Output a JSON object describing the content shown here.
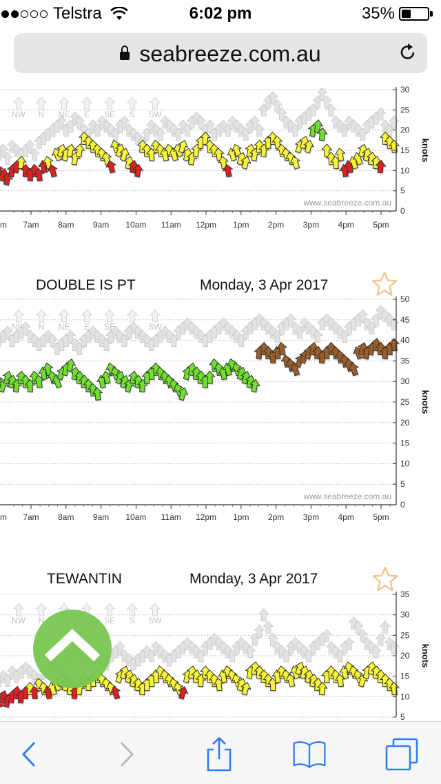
{
  "status_bar": {
    "carrier": "Telstra",
    "time": "6:02 pm",
    "battery": "35%",
    "battery_level": 0.35
  },
  "browser": {
    "url": "seabreeze.com.au"
  },
  "colors": {
    "red": "#e02020",
    "yellow": "#f7f439",
    "green": "#6fe02c",
    "brown": "#9b5e2a",
    "gust": "#e3e3e3",
    "star": "#f4c48d",
    "topbtn": "#79c752"
  },
  "compass_labels": [
    "NW",
    "N",
    "NE",
    "E",
    "SE",
    "S",
    "SW"
  ],
  "watermark": "www.seabreeze.com.au",
  "chart_data": [
    {
      "type": "scatter",
      "station": "",
      "date": "",
      "ylabel": "knots",
      "ylim": [
        0,
        30
      ],
      "yticks": [
        0,
        5,
        10,
        15,
        20,
        25,
        30
      ],
      "xticks": [
        "7am",
        "8am",
        "9am",
        "10am",
        "11am",
        "12pm",
        "1pm",
        "2pm",
        "3pm",
        "4pm",
        "5pm"
      ],
      "x_start_label": "m",
      "series": [
        {
          "name": "",
          "values": [
            10,
            9,
            8,
            10,
            11,
            12,
            10,
            9,
            10,
            9,
            11,
            12,
            10,
            14,
            15,
            14,
            15,
            13,
            15,
            18,
            17,
            16,
            15,
            14,
            13,
            11,
            16,
            15,
            14,
            12,
            11,
            10,
            16,
            15,
            14,
            16,
            15,
            14,
            15,
            14,
            15,
            16,
            14,
            13,
            15,
            17,
            18,
            16,
            15,
            14,
            12,
            10,
            14,
            15,
            13,
            12,
            15,
            14,
            16,
            15,
            17,
            18,
            17,
            15,
            14,
            13,
            12,
            16,
            17,
            16,
            20,
            21,
            19,
            15,
            13,
            12,
            14,
            10,
            11,
            12,
            13,
            15,
            14,
            13,
            12,
            11,
            18,
            17,
            16
          ]
        },
        {
          "name": "",
          "values": [
            14,
            15,
            13,
            16,
            15,
            14,
            15,
            16,
            14,
            17,
            18,
            19,
            20,
            21,
            22,
            20,
            21,
            23,
            22,
            20,
            19,
            21,
            20,
            22,
            21,
            20,
            19,
            21,
            22,
            20,
            19,
            18,
            17,
            19,
            21,
            20,
            19,
            22,
            21,
            20,
            19,
            21,
            20,
            22,
            23,
            22,
            20,
            21,
            19,
            20,
            21,
            20,
            22,
            21,
            20,
            19,
            21,
            22,
            20,
            25,
            27,
            28,
            26,
            24,
            22,
            21,
            20,
            22,
            23,
            24,
            25,
            27,
            29,
            27,
            25,
            22,
            21,
            20,
            22,
            21,
            20,
            19,
            21,
            22,
            23,
            24,
            21,
            20,
            22
          ]
        }
      ]
    },
    {
      "type": "scatter",
      "station": "DOUBLE IS PT",
      "date": "Monday, 3 Apr 2017",
      "ylabel": "knots",
      "ylim": [
        0,
        50
      ],
      "yticks": [
        0,
        5,
        10,
        15,
        20,
        25,
        30,
        35,
        40,
        45,
        50
      ],
      "xticks": [
        "7am",
        "8am",
        "9am",
        "10am",
        "11am",
        "12pm",
        "1pm",
        "2pm",
        "3pm",
        "4pm",
        "5pm"
      ],
      "x_start_label": "m",
      "series": [
        {
          "name": "",
          "values": [
            30,
            29,
            31,
            30,
            29,
            31,
            30,
            29,
            31,
            30,
            32,
            33,
            31,
            30,
            32,
            33,
            34,
            32,
            31,
            30,
            29,
            28,
            27,
            30,
            31,
            33,
            32,
            31,
            30,
            29,
            31,
            30,
            29,
            31,
            32,
            33,
            32,
            31,
            30,
            29,
            28,
            27,
            32,
            33,
            32,
            31,
            30,
            31,
            34,
            33,
            32,
            33,
            34,
            33,
            32,
            31,
            30,
            29,
            37,
            38,
            37,
            36,
            37,
            38,
            35,
            34,
            33,
            35,
            36,
            37,
            38,
            37,
            36,
            37,
            38,
            37,
            36,
            35,
            34,
            33,
            37,
            38,
            37,
            38,
            39,
            38,
            37,
            38,
            39
          ]
        },
        {
          "name": "",
          "values": [
            40,
            41,
            42,
            40,
            41,
            42,
            43,
            41,
            40,
            39,
            40,
            41,
            40,
            38,
            39,
            40,
            41,
            39,
            38,
            40,
            41,
            42,
            41,
            40,
            39,
            41,
            42,
            41,
            40,
            42,
            43,
            42,
            41,
            40,
            39,
            40,
            41,
            42,
            41,
            40,
            42,
            43,
            44,
            43,
            42,
            41,
            40,
            41,
            42,
            43,
            44,
            43,
            42,
            41,
            40,
            42,
            43,
            44,
            45,
            44,
            43,
            42,
            41,
            43,
            44,
            45,
            43,
            42,
            44,
            43,
            42,
            41,
            44,
            45,
            44,
            43,
            42,
            41,
            43,
            44,
            45,
            46,
            44,
            43,
            45,
            47,
            46,
            45,
            44
          ]
        }
      ]
    },
    {
      "type": "scatter",
      "station": "TEWANTIN",
      "date": "Monday, 3 Apr 2017",
      "ylabel": "knots",
      "ylim": [
        5,
        35
      ],
      "yticks": [
        5,
        10,
        15,
        20,
        25,
        30,
        35
      ],
      "series": [
        {
          "name": "",
          "values": [
            9,
            10,
            9,
            10,
            11,
            10,
            11,
            12,
            11,
            13,
            12,
            11,
            12,
            13,
            14,
            13,
            12,
            11,
            12,
            14,
            13,
            14,
            15,
            14,
            13,
            12,
            11,
            15,
            16,
            15,
            14,
            13,
            12,
            13,
            14,
            15,
            16,
            15,
            14,
            13,
            12,
            11,
            15,
            16,
            15,
            14,
            16,
            15,
            14,
            13,
            15,
            16,
            15,
            14,
            13,
            12,
            16,
            17,
            16,
            15,
            14,
            13,
            15,
            16,
            15,
            14,
            16,
            17,
            16,
            15,
            14,
            13,
            12,
            15,
            16,
            15,
            14,
            16,
            17,
            16,
            15,
            14,
            16,
            17,
            16,
            15,
            14,
            13,
            12
          ]
        },
        {
          "name": "",
          "values": [
            14,
            15,
            14,
            16,
            15,
            16,
            17,
            16,
            15,
            14,
            16,
            17,
            18,
            17,
            16,
            19,
            20,
            22,
            20,
            19,
            18,
            19,
            20,
            19,
            18,
            20,
            21,
            22,
            20,
            19,
            18,
            19,
            20,
            21,
            20,
            22,
            21,
            20,
            19,
            20,
            21,
            22,
            23,
            22,
            21,
            20,
            22,
            23,
            24,
            23,
            22,
            21,
            20,
            22,
            23,
            22,
            21,
            24,
            26,
            30,
            27,
            24,
            22,
            21,
            20,
            22,
            23,
            22,
            21,
            20,
            22,
            23,
            24,
            25,
            22,
            21,
            20,
            22,
            23,
            28,
            27,
            25,
            23,
            22,
            21,
            24,
            27,
            23,
            22
          ]
        }
      ]
    }
  ]
}
